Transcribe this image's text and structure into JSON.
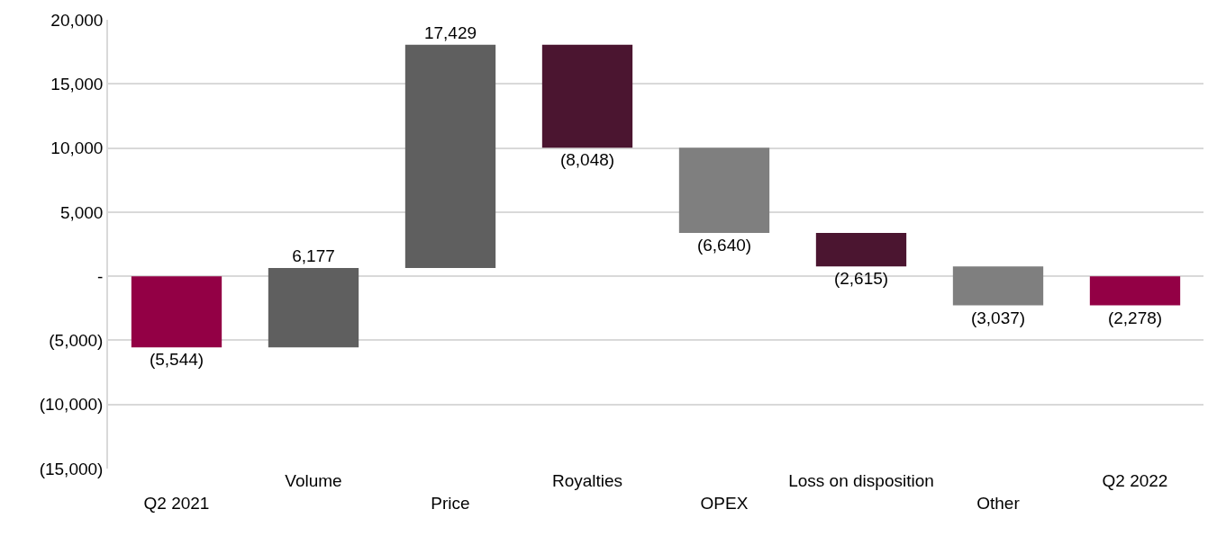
{
  "chart_data": {
    "type": "bar",
    "categories": [
      "Q2 2021",
      "Volume",
      "Price",
      "Royalties",
      "OPEX",
      "Loss on disposition",
      "Other",
      "Q2 2022"
    ],
    "values": [
      -5544,
      6177,
      17429,
      -8048,
      -6640,
      -2615,
      -3037,
      -2278
    ],
    "base": [
      0,
      -5544,
      633,
      18062,
      10014,
      3374,
      759,
      0
    ],
    "colors": [
      "#930045",
      "#5f5f5f",
      "#5f5f5f",
      "#4b1530",
      "#7f7f7f",
      "#4b1530",
      "#7f7f7f",
      "#930045"
    ],
    "value_labels": [
      "(5,544)",
      "6,177",
      "17,429",
      "(8,048)",
      "(6,640)",
      "(2,615)",
      "(3,037)",
      "(2,278)"
    ],
    "ylim": [
      -15000,
      20000
    ],
    "yticks": [
      {
        "value": -15000,
        "label": "(15,000)"
      },
      {
        "value": -10000,
        "label": "(10,000)"
      },
      {
        "value": -5000,
        "label": "(5,000)"
      },
      {
        "value": 0,
        "label": "-"
      },
      {
        "value": 5000,
        "label": "5,000"
      },
      {
        "value": 10000,
        "label": "10,000"
      },
      {
        "value": 15000,
        "label": "15,000"
      },
      {
        "value": 20000,
        "label": "20,000"
      }
    ],
    "grid": "y"
  }
}
